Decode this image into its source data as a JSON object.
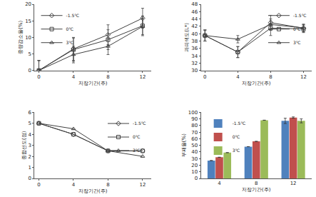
{
  "chart_data": [
    {
      "type": "line",
      "x_label": "저장기간(주)",
      "y_label": "중량감소율(%)",
      "x": [
        0,
        4,
        8,
        12
      ],
      "xlim": [
        -0.5,
        13
      ],
      "xticks": [
        0,
        4,
        8,
        12
      ],
      "ylim": [
        0,
        20
      ],
      "yticks": [
        0,
        5,
        10,
        15,
        20
      ],
      "legend": "upper left",
      "series": [
        {
          "name": "-1.5℃",
          "color": "#404040",
          "marker": "diamond",
          "values": [
            0,
            6.5,
            10.8,
            15.8
          ],
          "errors": [
            3,
            3.5,
            3,
            3
          ]
        },
        {
          "name": "0℃",
          "color": "#404040",
          "marker": "square",
          "values": [
            0,
            6.3,
            9.3,
            13.5
          ],
          "errors": [
            3,
            3.5,
            3,
            3
          ]
        },
        {
          "name": "3℃",
          "color": "#404040",
          "marker": "triangle-up",
          "values": [
            0,
            4.8,
            7.3,
            13.3
          ],
          "errors": [
            3,
            2.5,
            2.5,
            2.5
          ]
        }
      ]
    },
    {
      "type": "line",
      "x_label": "저장기간(주)",
      "y_label": "과피색도(L*)",
      "x": [
        0,
        4,
        8,
        12
      ],
      "xlim": [
        -0.5,
        13
      ],
      "xticks": [
        0,
        4,
        8,
        12
      ],
      "ylim": [
        30,
        48
      ],
      "yticks": [
        30,
        32,
        34,
        36,
        38,
        40,
        42,
        44,
        46,
        48
      ],
      "legend": "upper right",
      "series": [
        {
          "name": "-1.5℃",
          "color": "#404040",
          "marker": "diamond",
          "values": [
            39.5,
            35,
            43,
            41.5
          ],
          "errors": [
            1.5,
            1.5,
            2,
            1
          ]
        },
        {
          "name": "0℃",
          "color": "#404040",
          "marker": "square",
          "values": [
            39.5,
            35,
            41.5,
            41.3
          ],
          "errors": [
            1.5,
            1.5,
            2,
            1
          ]
        },
        {
          "name": "3℃",
          "color": "#404040",
          "marker": "triangle-up",
          "values": [
            39.5,
            38.5,
            42.5,
            41.6
          ],
          "errors": [
            1.5,
            1,
            1.5,
            1
          ]
        }
      ]
    },
    {
      "type": "line",
      "x_label": "저장기간(주)",
      "y_label": "종합선도(점)",
      "x": [
        0,
        4,
        8,
        12
      ],
      "xlim": [
        -0.5,
        13
      ],
      "xticks": [
        0,
        4,
        8,
        12
      ],
      "ylim": [
        0,
        6
      ],
      "yticks": [
        0,
        1,
        2,
        3,
        4,
        5,
        6
      ],
      "legend": "upper right",
      "series": [
        {
          "name": "-1.5℃",
          "color": "#404040",
          "marker": "diamond",
          "values": [
            5,
            4,
            2.5,
            2.5
          ]
        },
        {
          "name": "0℃",
          "color": "#404040",
          "marker": "square",
          "values": [
            5,
            4,
            2.5,
            2.5
          ]
        },
        {
          "name": "3℃",
          "color": "#404040",
          "marker": "triangle-up",
          "values": [
            5,
            4.5,
            2.5,
            2
          ]
        }
      ]
    },
    {
      "type": "bar",
      "x_label": "저장기간(주)",
      "y_label": "부패율(%)",
      "categories": [
        "4",
        "8",
        "12"
      ],
      "ylim": [
        0,
        100
      ],
      "yticks": [
        0,
        10,
        20,
        30,
        40,
        50,
        60,
        70,
        80,
        90,
        100
      ],
      "legend": "upper left",
      "series": [
        {
          "name": "-1.5℃",
          "color": "#4f81bd",
          "values": [
            27,
            48,
            87
          ],
          "errors": [
            null,
            null,
            4
          ]
        },
        {
          "name": "0℃",
          "color": "#c0504d",
          "values": [
            32,
            56,
            92
          ],
          "errors": [
            null,
            null,
            1
          ]
        },
        {
          "name": "3℃",
          "color": "#9bbb59",
          "values": [
            39,
            88,
            87
          ],
          "errors": [
            null,
            null,
            3
          ]
        }
      ]
    }
  ]
}
